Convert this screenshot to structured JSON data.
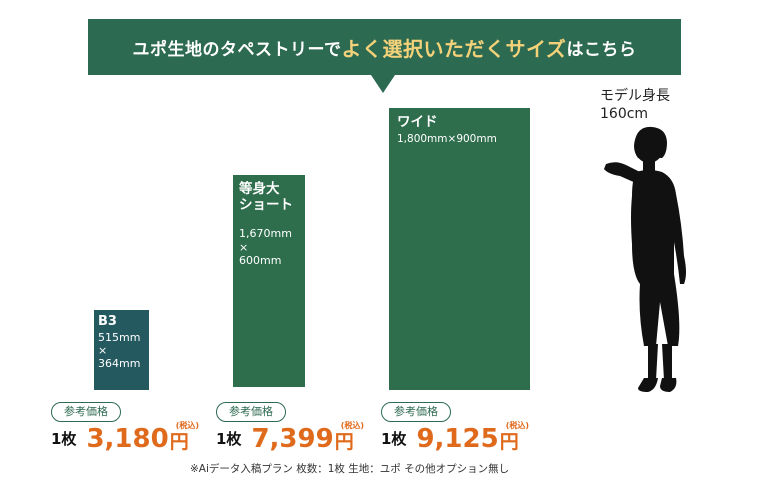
{
  "banner": {
    "prefix": "ユポ生地のタペストリーで",
    "highlight": "よく選択いただくサイズ",
    "suffix": "はこちら"
  },
  "model": {
    "label_line1": "モデル身長",
    "label_line2": "160cm"
  },
  "panels": [
    {
      "name": "B3",
      "dim_w": "515mm",
      "times": "×",
      "dim_h": "364mm"
    },
    {
      "name_line1": "等身大",
      "name_line2": "ショート",
      "dim_w": "1,670mm",
      "times": "×",
      "dim_h": "600mm"
    },
    {
      "name": "ワイド",
      "dims": "1,800mm×900mm"
    }
  ],
  "prices": [
    {
      "badge": "参考価格",
      "qty": "1枚",
      "amount": "3,180",
      "yen": "円",
      "tax": "(税込)"
    },
    {
      "badge": "参考価格",
      "qty": "1枚",
      "amount": "7,399",
      "yen": "円",
      "tax": "(税込)"
    },
    {
      "badge": "参考価格",
      "qty": "1枚",
      "amount": "9,125",
      "yen": "円",
      "tax": "(税込)"
    }
  ],
  "footnote": "※Aiデータ入稿プラン 枚数：1枚 生地：ユポ その他オプション無し",
  "colors": {
    "banner": "#2d6a52",
    "highlight": "#f4d27a",
    "panel_b3": "#23595f",
    "panel_green": "#2e6e4d",
    "price": "#e06a1c"
  }
}
